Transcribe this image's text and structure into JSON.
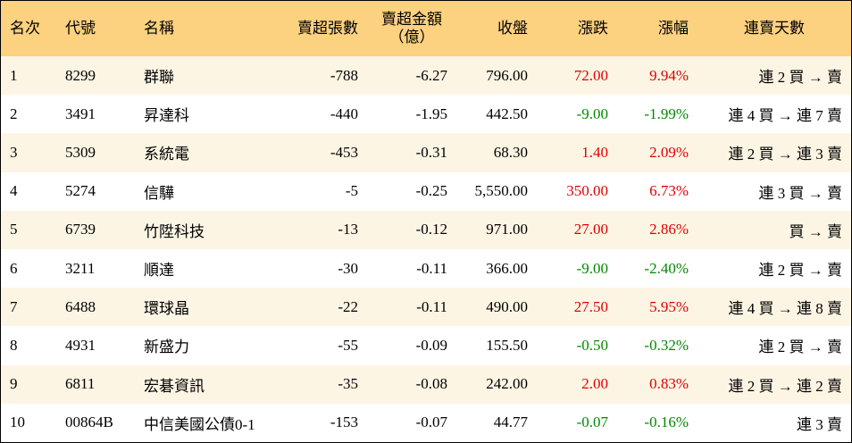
{
  "table": {
    "header": [
      "名次",
      "代號",
      "名稱",
      "賣超張數",
      "賣超金額\n（億）",
      "收盤",
      "漲跌",
      "漲幅",
      "連賣天數"
    ],
    "rows": [
      [
        "1",
        "8299",
        "群聯",
        "-788",
        "-6.27",
        "796.00",
        "72.00",
        "9.94%",
        "連 2 買 → 賣"
      ],
      [
        "2",
        "3491",
        "昇達科",
        "-440",
        "-1.95",
        "442.50",
        "-9.00",
        "-1.99%",
        "連 4 買 → 連 7 賣"
      ],
      [
        "3",
        "5309",
        "系統電",
        "-453",
        "-0.31",
        "68.30",
        "1.40",
        "2.09%",
        "連 2 買 → 連 3 賣"
      ],
      [
        "4",
        "5274",
        "信驊",
        "-5",
        "-0.25",
        "5,550.00",
        "350.00",
        "6.73%",
        "連 3 買 → 賣"
      ],
      [
        "5",
        "6739",
        "竹陞科技",
        "-13",
        "-0.12",
        "971.00",
        "27.00",
        "2.86%",
        "買 → 賣"
      ],
      [
        "6",
        "3211",
        "順達",
        "-30",
        "-0.11",
        "366.00",
        "-9.00",
        "-2.40%",
        "連 2 買 → 賣"
      ],
      [
        "7",
        "6488",
        "環球晶",
        "-22",
        "-0.11",
        "490.00",
        "27.50",
        "5.95%",
        "連 4 買 → 連 8 賣"
      ],
      [
        "8",
        "4931",
        "新盛力",
        "-55",
        "-0.09",
        "155.50",
        "-0.50",
        "-0.32%",
        "連 2 買 → 賣"
      ],
      [
        "9",
        "6811",
        "宏碁資訊",
        "-35",
        "-0.08",
        "242.00",
        "2.00",
        "0.83%",
        "連 2 買 → 連 2 賣"
      ],
      [
        "10",
        "00864B",
        "中信美國公債0-1",
        "-153",
        "-0.07",
        "44.77",
        "-0.07",
        "-0.16%",
        "連 3 賣"
      ]
    ]
  }
}
